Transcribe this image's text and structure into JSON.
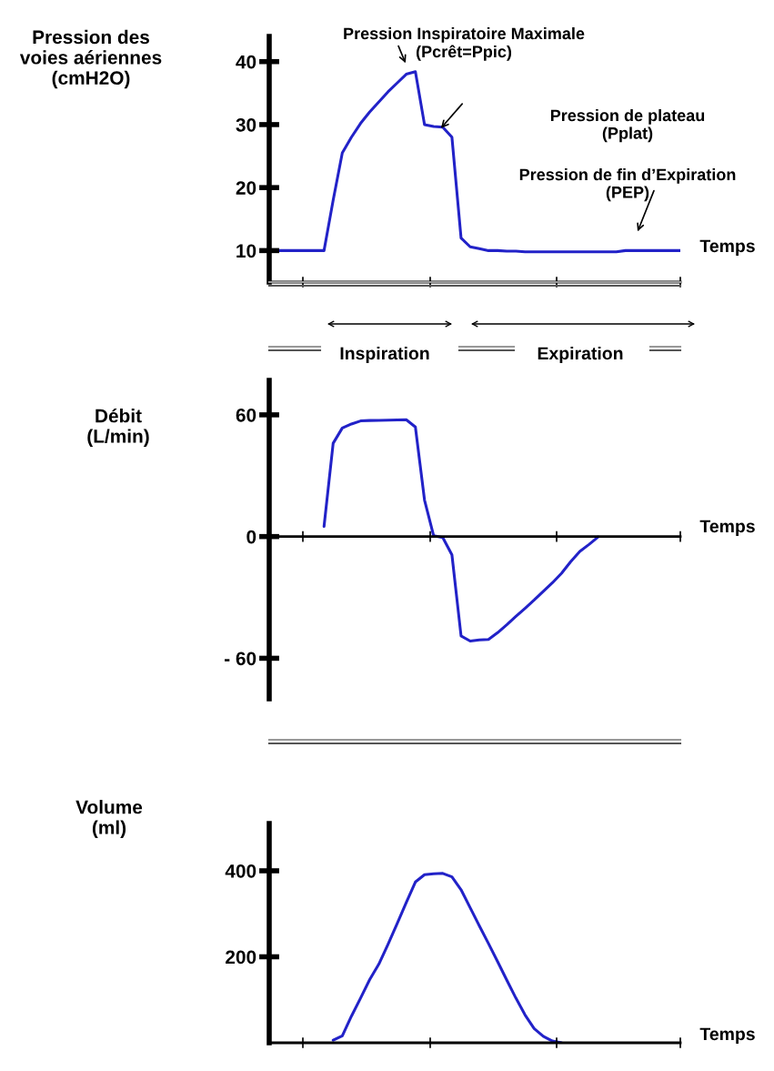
{
  "chart_data": [
    {
      "type": "line",
      "ylabel": "Pression des\nvoies aériennes\n(cmH2O)",
      "xlabel": "Temps",
      "categories": [
        null,
        null,
        null,
        null,
        null,
        null,
        null,
        null,
        null,
        null,
        null,
        null,
        null,
        null,
        null,
        null,
        null,
        null,
        null,
        null,
        null,
        null,
        null,
        null,
        null,
        null,
        null,
        null,
        null,
        null,
        null,
        null,
        null,
        null,
        null,
        null,
        null,
        null,
        null,
        null,
        null,
        null,
        null,
        null,
        null,
        null
      ],
      "ylim": [
        5,
        44
      ],
      "yticks": [
        10,
        20,
        30,
        40
      ],
      "series": [
        {
          "color": "#2222c8",
          "values": [
            null,
            10,
            10,
            10,
            10,
            10,
            10,
            18,
            25.5,
            28,
            30.2,
            32,
            33.6,
            35.2,
            36.6,
            38,
            38.4,
            30,
            29.7,
            29.6,
            28,
            12,
            10.6,
            10.3,
            10,
            10,
            9.9,
            9.9,
            9.8,
            9.8,
            9.8,
            9.8,
            9.8,
            9.8,
            9.8,
            9.8,
            9.8,
            9.8,
            9.8,
            10,
            10,
            10,
            10,
            10,
            10,
            10
          ]
        }
      ],
      "annotations": [
        "Pression Inspiratoire Maximale\n(Pcrêt=Ppic)",
        "Pression de plateau\n(Pplat)",
        "Pression de fin d’Expiration\n(PEP)"
      ]
    },
    {
      "type": "line",
      "ylabel": "Débit\n(L/min)",
      "xlabel": "Temps",
      "categories": [
        null,
        null,
        null,
        null,
        null,
        null,
        null,
        null,
        null,
        null,
        null,
        null,
        null,
        null,
        null,
        null,
        null,
        null,
        null,
        null,
        null,
        null,
        null,
        null,
        null,
        null,
        null,
        null,
        null,
        null,
        null,
        null,
        null,
        null,
        null,
        null,
        null,
        null,
        null,
        null,
        null,
        null,
        null,
        null,
        null,
        null
      ],
      "ylim": [
        -80,
        77
      ],
      "yticks": [
        {
          "value": -60,
          "label": "- 60"
        },
        0,
        60
      ],
      "series": [
        {
          "color": "#2222c8",
          "values": [
            null,
            null,
            null,
            null,
            null,
            null,
            5,
            46,
            53.5,
            55.5,
            57,
            57.2,
            57.3,
            57.4,
            57.5,
            57.6,
            54,
            18,
            0.4,
            -0.5,
            -9,
            -49,
            -51.5,
            -51,
            -50.7,
            -47.4,
            -43.5,
            -39.4,
            -35.4,
            -31.3,
            -27,
            -22.8,
            -18.1,
            -12.4,
            -7.3,
            -3.9,
            -0.2,
            null,
            null,
            null,
            null,
            null,
            null,
            null,
            null,
            null
          ]
        }
      ],
      "annotations": [
        "Inspiration",
        "Expiration"
      ]
    },
    {
      "type": "line",
      "ylabel": "Volume\n(ml)",
      "xlabel": "Temps",
      "categories": [
        null,
        null,
        null,
        null,
        null,
        null,
        null,
        null,
        null,
        null,
        null,
        null,
        null,
        null,
        null,
        null,
        null,
        null,
        null,
        null,
        null,
        null,
        null,
        null,
        null,
        null,
        null,
        null,
        null,
        null,
        null,
        null,
        null,
        null,
        null,
        null,
        null,
        null,
        null,
        null,
        null,
        null,
        null,
        null,
        null,
        null
      ],
      "ylim": [
        0,
        510
      ],
      "yticks": [
        200,
        400
      ],
      "series": [
        {
          "color": "#2222c8",
          "values": [
            null,
            null,
            null,
            null,
            null,
            null,
            null,
            6,
            16,
            62,
            104,
            147,
            183,
            229,
            277,
            326,
            374,
            391,
            393,
            394,
            386,
            356,
            314,
            272,
            231,
            189,
            146,
            104,
            65,
            33,
            15,
            4,
            0,
            null,
            null,
            null,
            null,
            null,
            null,
            null,
            null,
            null,
            null,
            null,
            null,
            null
          ]
        }
      ]
    }
  ]
}
